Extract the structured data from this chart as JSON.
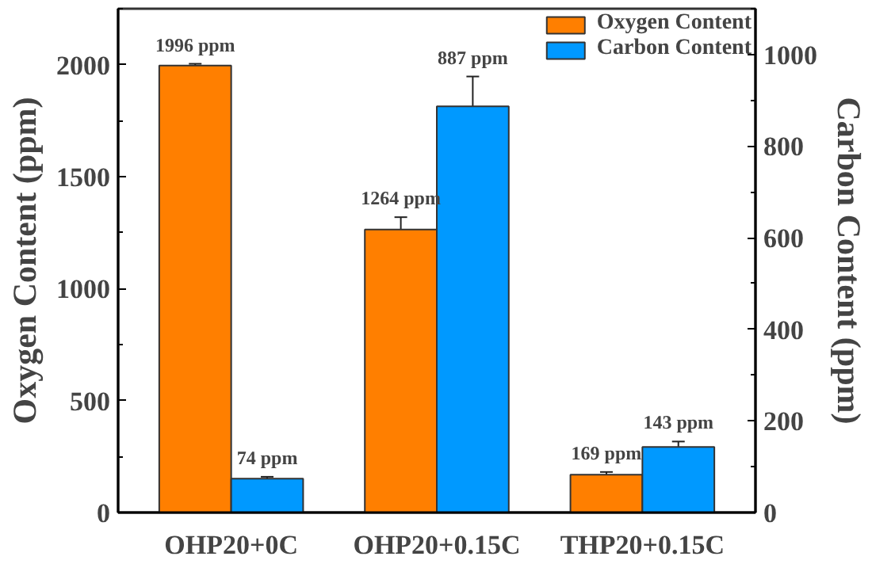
{
  "chart_data": {
    "type": "bar",
    "categories": [
      "OHP20+0C",
      "OHP20+0.15C",
      "THP20+0.15C"
    ],
    "ylabel": "Oxygen Content (ppm)",
    "y2label": "Carbon Content (ppm)",
    "ylim": [
      0,
      2250
    ],
    "yticks": [
      0,
      500,
      1000,
      1500,
      2000
    ],
    "y2lim": [
      0,
      1100
    ],
    "y2ticks": [
      0,
      200,
      400,
      600,
      800,
      1000
    ],
    "grid": false,
    "legend": "top right",
    "series": [
      {
        "name": "Oxygen Content",
        "color": "#ff7f00",
        "values": [
          1996,
          1264,
          169
        ],
        "errors": [
          8,
          55,
          12
        ],
        "value_labels": [
          "1996 ppm",
          "1264 ppm",
          "169 ppm"
        ]
      },
      {
        "name": "Carbon Content",
        "color": "#0099ff",
        "axis": "y2",
        "values": [
          74,
          887,
          143
        ],
        "errors": [
          4,
          65,
          12
        ],
        "value_labels": [
          "74 ppm",
          "887 ppm",
          "143 ppm"
        ]
      }
    ]
  }
}
